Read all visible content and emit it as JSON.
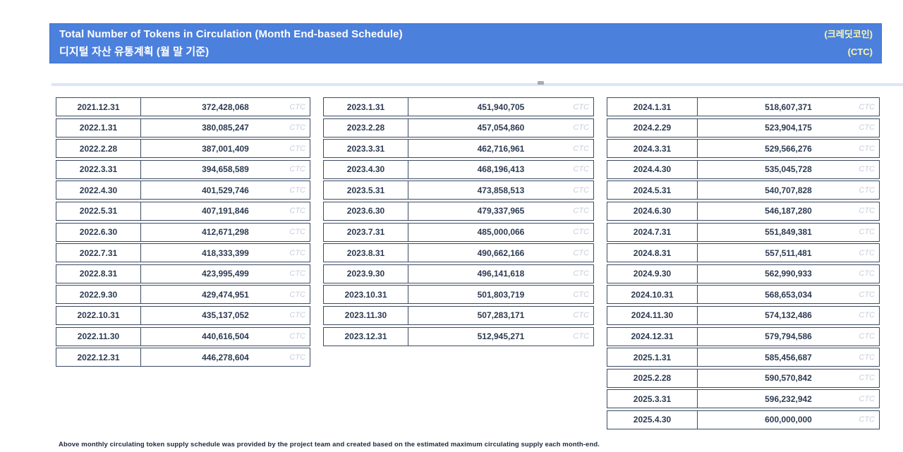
{
  "header": {
    "title_en": "Total Number of Tokens in Circulation (Month End-based Schedule)",
    "title_ko": "디지털 자산 유통계획 (월 말 기준)",
    "coin_name_ko": "(크레딧코인)",
    "coin_ticker": "(CTC)"
  },
  "colors": {
    "header_bg": "#4c80dd",
    "header_text": "#ffffff",
    "header_accent_text": "#fdf7a8",
    "table_border": "#3c4a63",
    "cell_text": "#2c3b52",
    "unit_text": "#c9cede",
    "divider_bar": "#dce6f7"
  },
  "unit_label": "CTC",
  "tables": [
    {
      "id": "schedule-2022",
      "rows": [
        {
          "date": "2021.12.31",
          "value": "372,428,068"
        },
        {
          "date": "2022.1.31",
          "value": "380,085,247"
        },
        {
          "date": "2022.2.28",
          "value": "387,001,409"
        },
        {
          "date": "2022.3.31",
          "value": "394,658,589"
        },
        {
          "date": "2022.4.30",
          "value": "401,529,746"
        },
        {
          "date": "2022.5.31",
          "value": "407,191,846"
        },
        {
          "date": "2022.6.30",
          "value": "412,671,298"
        },
        {
          "date": "2022.7.31",
          "value": "418,333,399"
        },
        {
          "date": "2022.8.31",
          "value": "423,995,499"
        },
        {
          "date": "2022.9.30",
          "value": "429,474,951"
        },
        {
          "date": "2022.10.31",
          "value": "435,137,052"
        },
        {
          "date": "2022.11.30",
          "value": "440,616,504"
        },
        {
          "date": "2022.12.31",
          "value": "446,278,604"
        }
      ]
    },
    {
      "id": "schedule-2023",
      "rows": [
        {
          "date": "2023.1.31",
          "value": "451,940,705"
        },
        {
          "date": "2023.2.28",
          "value": "457,054,860"
        },
        {
          "date": "2023.3.31",
          "value": "462,716,961"
        },
        {
          "date": "2023.4.30",
          "value": "468,196,413"
        },
        {
          "date": "2023.5.31",
          "value": "473,858,513"
        },
        {
          "date": "2023.6.30",
          "value": "479,337,965"
        },
        {
          "date": "2023.7.31",
          "value": "485,000,066"
        },
        {
          "date": "2023.8.31",
          "value": "490,662,166"
        },
        {
          "date": "2023.9.30",
          "value": "496,141,618"
        },
        {
          "date": "2023.10.31",
          "value": "501,803,719"
        },
        {
          "date": "2023.11.30",
          "value": "507,283,171"
        },
        {
          "date": "2023.12.31",
          "value": "512,945,271"
        }
      ]
    },
    {
      "id": "schedule-2024-2025",
      "rows": [
        {
          "date": "2024.1.31",
          "value": "518,607,371"
        },
        {
          "date": "2024.2.29",
          "value": "523,904,175"
        },
        {
          "date": "2024.3.31",
          "value": "529,566,276"
        },
        {
          "date": "2024.4.30",
          "value": "535,045,728"
        },
        {
          "date": "2024.5.31",
          "value": "540,707,828"
        },
        {
          "date": "2024.6.30",
          "value": "546,187,280"
        },
        {
          "date": "2024.7.31",
          "value": "551,849,381"
        },
        {
          "date": "2024.8.31",
          "value": "557,511,481"
        },
        {
          "date": "2024.9.30",
          "value": "562,990,933"
        },
        {
          "date": "2024.10.31",
          "value": "568,653,034"
        },
        {
          "date": "2024.11.30",
          "value": "574,132,486"
        },
        {
          "date": "2024.12.31",
          "value": "579,794,586"
        },
        {
          "date": "2025.1.31",
          "value": "585,456,687"
        },
        {
          "date": "2025.2.28",
          "value": "590,570,842"
        },
        {
          "date": "2025.3.31",
          "value": "596,232,942"
        },
        {
          "date": "2025.4.30",
          "value": "600,000,000"
        }
      ]
    }
  ],
  "footnote": "Above monthly circulating token supply schedule was provided by the project team and created based on the estimated maximum circulating supply each month-end."
}
